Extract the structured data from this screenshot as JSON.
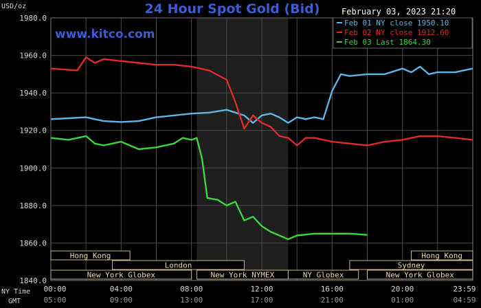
{
  "header": {
    "title": "24 Hour Spot Gold (Bid)",
    "brand": "www.kitco.com",
    "datetime": "February 03, 2023 21:20",
    "y_unit": "USD/oz"
  },
  "axis_labels": {
    "ny_time": "NY Time",
    "gmt": "GMT"
  },
  "colors": {
    "background": "#000000",
    "grid": "#4a4a4a",
    "nymex_shade": "#1f1f1f",
    "market_box": "#c9b98a",
    "feb01": "#5fb5e6",
    "feb02": "#e02a2a",
    "feb03": "#3cd63c"
  },
  "chart_data": {
    "type": "line",
    "title": "24 Hour Spot Gold (Bid)",
    "ylabel": "USD/oz",
    "ylim": [
      1840,
      1980
    ],
    "yticks": [
      "1840.0",
      "1860.0",
      "1880.0",
      "1900.0",
      "1920.0",
      "1940.0",
      "1960.0",
      "1980.0"
    ],
    "xlim": [
      0,
      24
    ],
    "x_unit": "hours (NY Time)",
    "xticks_ny": [
      "00:00",
      "04:00",
      "08:00",
      "12:00",
      "16:00",
      "20:00",
      "23:59"
    ],
    "xticks_gmt": [
      "05:00",
      "09:00",
      "13:00",
      "17:00",
      "21:00",
      "01:00",
      "04:59"
    ],
    "grid": true,
    "legend_position": "top-right",
    "series": [
      {
        "name": "Feb 01 NY close 1950.10",
        "color": "#5fb5e6",
        "points": [
          [
            0,
            1926
          ],
          [
            1,
            1926.5
          ],
          [
            2,
            1927
          ],
          [
            3,
            1925
          ],
          [
            4,
            1924.5
          ],
          [
            5,
            1925
          ],
          [
            6,
            1927
          ],
          [
            7,
            1928
          ],
          [
            8,
            1929
          ],
          [
            9,
            1929.5
          ],
          [
            10,
            1931
          ],
          [
            11,
            1928
          ],
          [
            11.5,
            1924
          ],
          [
            12,
            1928
          ],
          [
            12.5,
            1929
          ],
          [
            13,
            1927
          ],
          [
            13.5,
            1924
          ],
          [
            14,
            1927
          ],
          [
            14.5,
            1926
          ],
          [
            15,
            1927
          ],
          [
            15.5,
            1926
          ],
          [
            16,
            1941
          ],
          [
            16.5,
            1950
          ],
          [
            17,
            1949
          ],
          [
            18,
            1950
          ],
          [
            19,
            1950
          ],
          [
            20,
            1953
          ],
          [
            20.5,
            1951
          ],
          [
            21,
            1954
          ],
          [
            21.5,
            1950
          ],
          [
            22,
            1951
          ],
          [
            23,
            1951
          ],
          [
            24,
            1953
          ]
        ]
      },
      {
        "name": "Feb 02 NY close 1912.60",
        "color": "#e02a2a",
        "points": [
          [
            0,
            1953
          ],
          [
            1.5,
            1952
          ],
          [
            2,
            1959
          ],
          [
            2.5,
            1956
          ],
          [
            3,
            1958
          ],
          [
            4,
            1957
          ],
          [
            5,
            1956
          ],
          [
            6,
            1955
          ],
          [
            7,
            1955
          ],
          [
            8,
            1954
          ],
          [
            9,
            1952
          ],
          [
            10,
            1947
          ],
          [
            10.5,
            1935
          ],
          [
            11,
            1921
          ],
          [
            11.5,
            1928
          ],
          [
            12,
            1924
          ],
          [
            12.5,
            1922
          ],
          [
            13,
            1917
          ],
          [
            13.5,
            1916
          ],
          [
            14,
            1912
          ],
          [
            14.5,
            1916
          ],
          [
            15,
            1916
          ],
          [
            16,
            1914
          ],
          [
            17,
            1913
          ],
          [
            18,
            1912
          ],
          [
            19,
            1914
          ],
          [
            20,
            1915
          ],
          [
            21,
            1917
          ],
          [
            22,
            1917
          ],
          [
            23,
            1916
          ],
          [
            24,
            1915
          ]
        ]
      },
      {
        "name": "Feb 03 Last 1864.30",
        "color": "#3cd63c",
        "points": [
          [
            0,
            1916
          ],
          [
            1,
            1915
          ],
          [
            2,
            1917
          ],
          [
            2.5,
            1913
          ],
          [
            3,
            1912
          ],
          [
            4,
            1914
          ],
          [
            5,
            1910
          ],
          [
            6,
            1911
          ],
          [
            7,
            1913
          ],
          [
            7.5,
            1916
          ],
          [
            8,
            1915
          ],
          [
            8.3,
            1916
          ],
          [
            8.6,
            1905
          ],
          [
            8.9,
            1884
          ],
          [
            9.5,
            1883
          ],
          [
            10,
            1880
          ],
          [
            10.5,
            1882
          ],
          [
            11,
            1872
          ],
          [
            11.5,
            1874
          ],
          [
            12,
            1869
          ],
          [
            12.5,
            1866
          ],
          [
            13,
            1864
          ],
          [
            13.5,
            1862
          ],
          [
            14,
            1864
          ],
          [
            15,
            1865
          ],
          [
            16,
            1865
          ],
          [
            17,
            1865
          ],
          [
            18,
            1864.3
          ]
        ]
      }
    ],
    "shaded_region": {
      "label": "New York NYMEX",
      "x": [
        8.3,
        13.5
      ]
    },
    "market_sessions": [
      {
        "label": "Hong Kong",
        "x": [
          0,
          4.5
        ],
        "row": 0
      },
      {
        "label": "Hong Kong",
        "x": [
          20.5,
          24
        ],
        "row": 0
      },
      {
        "label": "London",
        "x": [
          3.5,
          11
        ],
        "row": 1
      },
      {
        "label": "Sydney",
        "x": [
          17,
          24
        ],
        "row": 1
      },
      {
        "label": "New York Globex",
        "x": [
          0,
          8
        ],
        "row": 2
      },
      {
        "label": "New York NYMEX",
        "x": [
          8.3,
          13.5
        ],
        "row": 2
      },
      {
        "label": "NY Globex",
        "x": [
          13.5,
          17.5
        ],
        "row": 2
      },
      {
        "label": "New York Globex",
        "x": [
          18,
          24
        ],
        "row": 2
      }
    ]
  }
}
